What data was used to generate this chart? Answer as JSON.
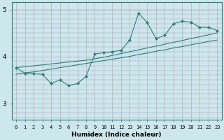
{
  "xlabel": "Humidex (Indice chaleur)",
  "xlim": [
    -0.5,
    23.5
  ],
  "ylim": [
    2.65,
    5.15
  ],
  "yticks": [
    3,
    4,
    5
  ],
  "xticks": [
    0,
    1,
    2,
    3,
    4,
    5,
    6,
    7,
    8,
    9,
    10,
    11,
    12,
    13,
    14,
    15,
    16,
    17,
    18,
    19,
    20,
    21,
    22,
    23
  ],
  "bg_color": "#cce8ed",
  "line_color": "#2e7d7d",
  "grid_color_v": "#b8d9dd",
  "grid_color_h": "#b8b8cc",
  "data_line": [
    3.76,
    3.64,
    3.63,
    3.62,
    3.42,
    3.5,
    3.38,
    3.42,
    3.58,
    4.05,
    4.08,
    4.1,
    4.13,
    4.35,
    4.92,
    4.72,
    4.38,
    4.45,
    4.7,
    4.75,
    4.73,
    4.62,
    4.62,
    4.55
  ],
  "line_upper": [
    3.76,
    3.78,
    3.8,
    3.82,
    3.84,
    3.86,
    3.88,
    3.9,
    3.92,
    3.95,
    3.98,
    4.02,
    4.06,
    4.1,
    4.14,
    4.18,
    4.22,
    4.26,
    4.3,
    4.34,
    4.38,
    4.42,
    4.46,
    4.5
  ],
  "line_lower": [
    3.62,
    3.65,
    3.67,
    3.7,
    3.73,
    3.76,
    3.79,
    3.82,
    3.85,
    3.88,
    3.91,
    3.94,
    3.97,
    4.0,
    4.04,
    4.07,
    4.11,
    4.14,
    4.18,
    4.21,
    4.25,
    4.28,
    4.32,
    4.35
  ]
}
